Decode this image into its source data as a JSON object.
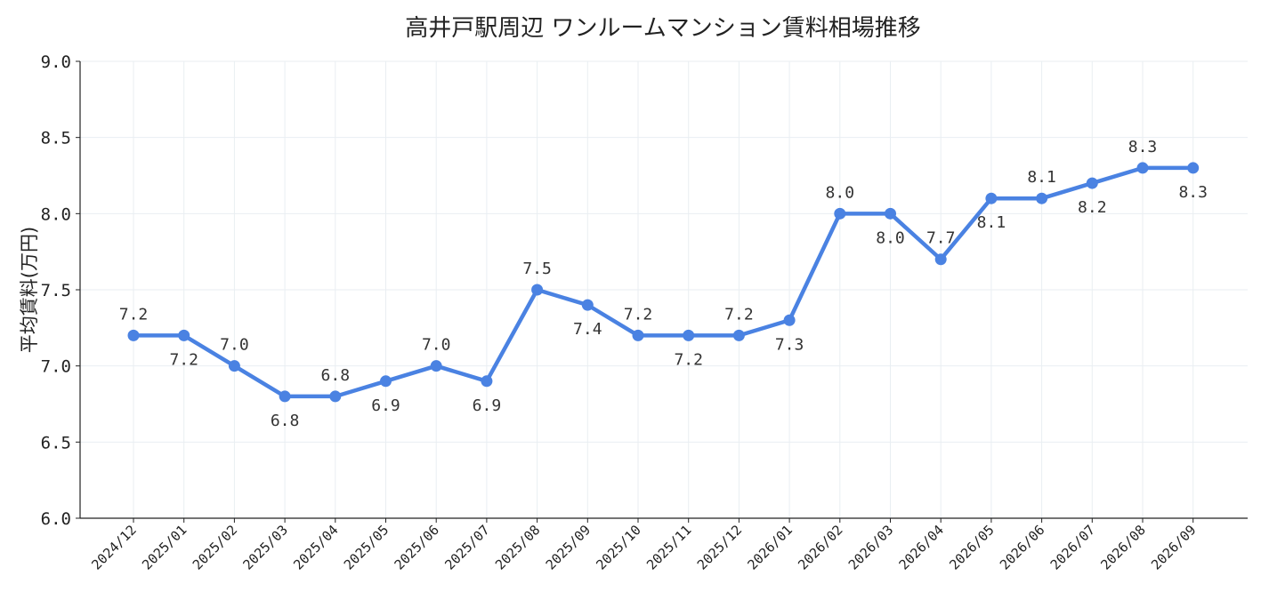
{
  "chart_data": {
    "type": "line",
    "title": "高井戸駅周辺 ワンルームマンション賃料相場推移",
    "xlabel": "",
    "ylabel": "平均賃料(万円)",
    "ylim": [
      6.0,
      9.0
    ],
    "yticks": [
      "6.0",
      "6.5",
      "7.0",
      "7.5",
      "8.0",
      "8.5",
      "9.0"
    ],
    "grid": true,
    "categories": [
      "2024/12",
      "2025/01",
      "2025/02",
      "2025/03",
      "2025/04",
      "2025/05",
      "2025/06",
      "2025/07",
      "2025/08",
      "2025/09",
      "2025/10",
      "2025/11",
      "2025/12",
      "2026/01",
      "2026/02",
      "2026/03",
      "2026/04",
      "2026/05",
      "2026/06",
      "2026/07",
      "2026/08",
      "2026/09"
    ],
    "series": [
      {
        "name": "",
        "color": "#4a82e2",
        "values": [
          7.2,
          7.2,
          7.0,
          6.8,
          6.8,
          6.9,
          7.0,
          6.9,
          7.5,
          7.4,
          7.2,
          7.2,
          7.2,
          7.3,
          8.0,
          8.0,
          7.7,
          8.1,
          8.1,
          8.2,
          8.3,
          8.3
        ],
        "labels": [
          "7.2",
          "7.2",
          "7.0",
          "6.8",
          "6.8",
          "6.9",
          "7.0",
          "6.9",
          "7.5",
          "7.4",
          "7.2",
          "7.2",
          "7.2",
          "7.3",
          "8.0",
          "8.0",
          "7.7",
          "8.1",
          "8.1",
          "8.2",
          "8.3",
          "8.3"
        ],
        "label_positions": [
          "above",
          "below",
          "above",
          "below",
          "above",
          "below",
          "above",
          "below",
          "above",
          "below",
          "above",
          "below",
          "above",
          "below",
          "above",
          "below",
          "above",
          "below",
          "above",
          "below",
          "above",
          "below"
        ]
      }
    ]
  }
}
